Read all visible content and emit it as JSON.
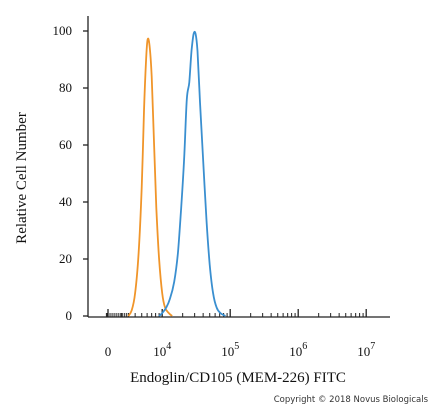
{
  "chart_data": {
    "type": "line",
    "title": "",
    "xlabel": "Endoglin/CD105 (MEM-226) FITC",
    "ylabel": "Relative Cell Number",
    "ylim": [
      0,
      100
    ],
    "yticks": [
      0,
      20,
      40,
      60,
      80,
      100
    ],
    "xscale": "biexponential",
    "xtick_labels": [
      {
        "base": "0",
        "exp": ""
      },
      {
        "base": "10",
        "exp": "4"
      },
      {
        "base": "10",
        "exp": "5"
      },
      {
        "base": "10",
        "exp": "6"
      },
      {
        "base": "10",
        "exp": "7"
      }
    ],
    "grid": false,
    "legend": "none",
    "series": [
      {
        "color": "#f0952a",
        "points": [
          [
            3000,
            0
          ],
          [
            3500,
            2
          ],
          [
            4000,
            8
          ],
          [
            4500,
            22
          ],
          [
            5000,
            45
          ],
          [
            5400,
            72
          ],
          [
            5800,
            90
          ],
          [
            6100,
            97
          ],
          [
            6500,
            95
          ],
          [
            7000,
            84
          ],
          [
            7600,
            60
          ],
          [
            8200,
            38
          ],
          [
            9000,
            20
          ],
          [
            10000,
            8
          ],
          [
            11000,
            3
          ],
          [
            12500,
            1
          ],
          [
            14000,
            0
          ]
        ]
      },
      {
        "color": "#3a8fd0",
        "points": [
          [
            9000,
            0
          ],
          [
            10000,
            1
          ],
          [
            11500,
            3
          ],
          [
            13000,
            6
          ],
          [
            15000,
            12
          ],
          [
            17000,
            22
          ],
          [
            19000,
            38
          ],
          [
            21000,
            55
          ],
          [
            23000,
            76
          ],
          [
            25000,
            82
          ],
          [
            27000,
            93
          ],
          [
            29000,
            99
          ],
          [
            31000,
            99
          ],
          [
            33000,
            93
          ],
          [
            36000,
            75
          ],
          [
            40000,
            55
          ],
          [
            45000,
            33
          ],
          [
            50000,
            18
          ],
          [
            56000,
            8
          ],
          [
            63000,
            3
          ],
          [
            72000,
            1
          ],
          [
            85000,
            0
          ]
        ]
      }
    ]
  },
  "copyright": "Copyright © 2018 Novus Biologicals"
}
